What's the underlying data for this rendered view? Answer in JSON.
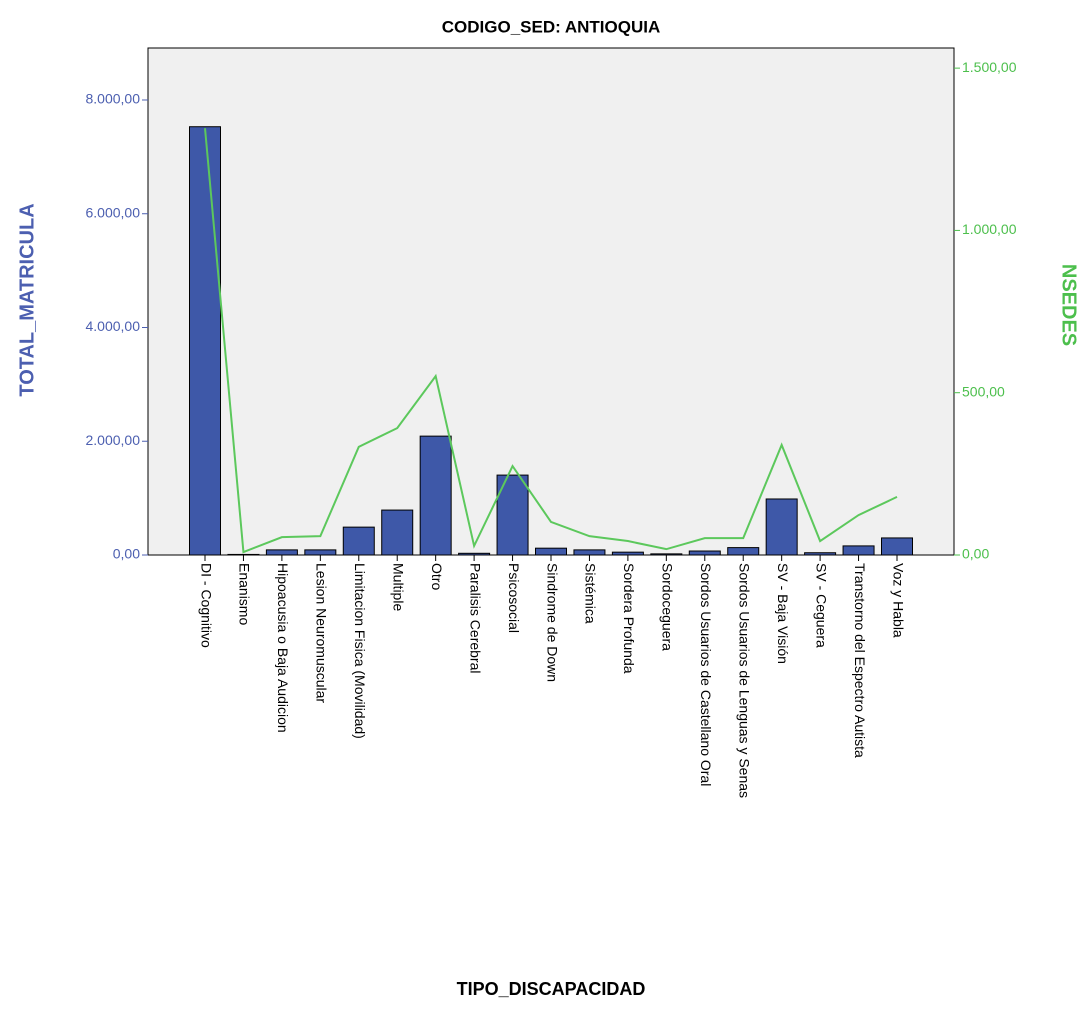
{
  "chart_data": {
    "type": "bar_line",
    "title": "CODIGO_SED: ANTIOQUIA",
    "x_label": "TIPO_DISCAPACIDAD",
    "y_label": "TOTAL_MATRICULA",
    "y2_label": "NSEDES",
    "categories": [
      "DI - Cognitivo",
      "Enanismo",
      "Hipoacusia o Baja Audicion",
      "Lesion Neuromuscular",
      "Limitacion Fisica (Movilidad)",
      "Multiple",
      "Otro",
      "Paralisis Cerebral",
      "Psicosocial",
      "Sindrome de Down",
      "Sistémica",
      "Sordera Profunda",
      "Sordoceguera",
      "Sordos Usuarios de Castellano Oral",
      "Sordos Usuarios de Lenguas y Senas",
      "SV - Baja Visión",
      "SV - Ceguera",
      "Transtorno del Espectro Autista",
      "Voz y Habla"
    ],
    "series": [
      {
        "name": "TOTAL_MATRICULA",
        "type": "bar",
        "color": "#3e58a8",
        "values": [
          7530,
          10,
          90,
          90,
          490,
          790,
          2090,
          30,
          1405,
          120,
          90,
          50,
          20,
          70,
          130,
          985,
          40,
          160,
          300
        ]
      },
      {
        "name": "NSEDES",
        "type": "line",
        "axis": "y2",
        "color": "#5cc85c",
        "values": [
          1315,
          9,
          55,
          58,
          333,
          391,
          551,
          28,
          274,
          102,
          58,
          43,
          18,
          52,
          52,
          339,
          43,
          123,
          179
        ]
      }
    ],
    "ylim": [
      0,
      8914
    ],
    "yticks": [
      {
        "value": 0,
        "label": "0,00"
      },
      {
        "value": 2000,
        "label": "2.000,00"
      },
      {
        "value": 4000,
        "label": "4.000,00"
      },
      {
        "value": 6000,
        "label": "6.000,00"
      },
      {
        "value": 8000,
        "label": "8.000,00"
      }
    ],
    "y2lim": [
      0,
      1562
    ],
    "y2ticks": [
      {
        "value": 0,
        "label": "0,00"
      },
      {
        "value": 500,
        "label": "500,00"
      },
      {
        "value": 1000,
        "label": "1.000,00"
      },
      {
        "value": 1500,
        "label": "1.500,00"
      }
    ],
    "background": "#f0f0f0"
  }
}
